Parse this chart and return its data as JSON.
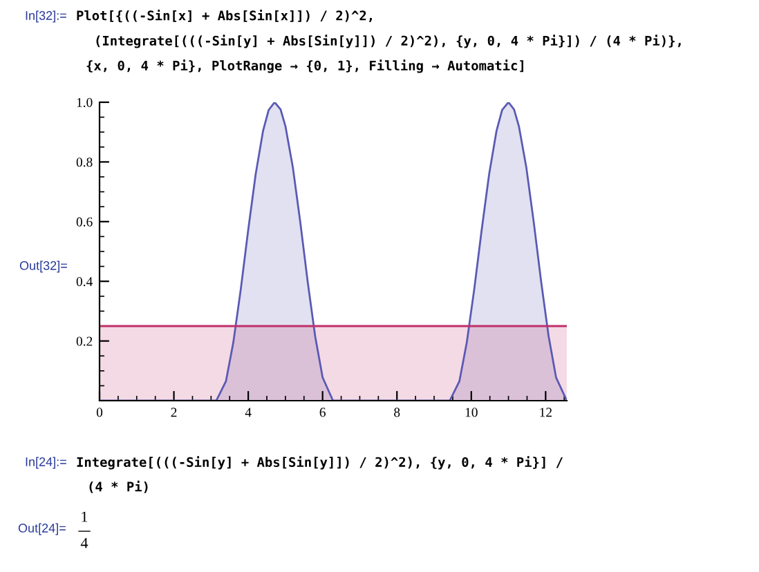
{
  "chart_data": {
    "type": "area",
    "x": [
      0,
      3.14,
      3.4,
      3.6,
      3.8,
      4.0,
      4.2,
      4.4,
      4.55,
      4.71,
      4.87,
      5.0,
      5.2,
      5.4,
      5.6,
      5.8,
      6.0,
      6.28,
      9.42,
      9.68,
      9.88,
      10.08,
      10.28,
      10.48,
      10.68,
      10.83,
      11.0,
      11.15,
      11.28,
      11.48,
      11.68,
      11.88,
      12.08,
      12.28,
      12.57
    ],
    "series": [
      {
        "color": "#5a5ab4",
        "values": [
          0,
          0,
          0.065,
          0.196,
          0.374,
          0.573,
          0.759,
          0.905,
          0.974,
          1,
          0.976,
          0.92,
          0.782,
          0.598,
          0.398,
          0.216,
          0.078,
          0,
          0,
          0.065,
          0.196,
          0.374,
          0.573,
          0.759,
          0.905,
          0.974,
          1,
          0.976,
          0.92,
          0.782,
          0.598,
          0.398,
          0.216,
          0.078,
          0
        ]
      },
      {
        "color": "#c0306a",
        "x": [
          0,
          12.57
        ],
        "values": [
          0.25,
          0.25
        ]
      }
    ],
    "xlim": [
      0,
      12.57
    ],
    "ylim": [
      0,
      1
    ],
    "xticks": [
      0,
      2,
      4,
      6,
      8,
      10,
      12
    ],
    "yticks": [
      0.2,
      0.4,
      0.6,
      0.8,
      {
        "value": 1,
        "label": "1.0"
      }
    ],
    "grid": false,
    "legend": false,
    "annotations": [
      "In[32]:=",
      "Plot[{((-Sin[x] + Abs[Sin[x]]) / 2)^2,",
      "(Integrate[(((-Sin[y] + Abs[Sin[y]]) / 2)^2), {y, 0, 4 * Pi}]) / (4 * Pi)},",
      "{x, 0, 4 * Pi}, PlotRange → {0, 1}, Filling → Automatic]",
      "Out[32]=",
      "In[24]:=",
      "Integrate[(((-Sin[y] + Abs[Sin[y]]) / 2)^2), {y, 0, 4 * Pi}] /",
      "(4 * Pi)",
      "Out[24]=",
      "1",
      "4"
    ]
  }
}
